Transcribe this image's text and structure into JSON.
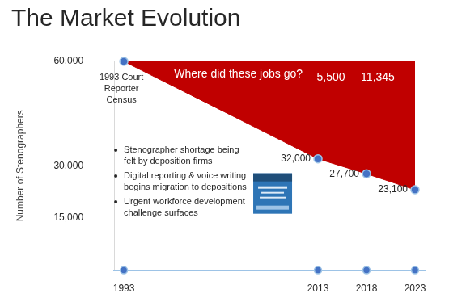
{
  "chart_data": {
    "type": "line",
    "title": "The Market Evolution",
    "y_label": "Number of Stenographers",
    "x": [
      1993,
      2013,
      2018,
      2023
    ],
    "values": [
      60000,
      32000,
      27700,
      23100
    ],
    "value_labels": [
      null,
      "32,000",
      "27,700",
      "23,100"
    ],
    "data_labels": true,
    "color": "#c00000",
    "marker": "circle",
    "xlim": [
      1992,
      2024
    ],
    "xticks": [
      1993,
      2013,
      2018,
      2023
    ],
    "ylim": [
      0,
      60000
    ],
    "yticks": [
      {
        "value": 15000,
        "label": "15,000"
      },
      {
        "value": 30000,
        "label": "30,000"
      },
      {
        "value": 60000,
        "label": "60,000"
      }
    ],
    "grid": false,
    "question": "Where did these jobs go?",
    "point_note": "1993 Court Reporter Census",
    "gap_labels": [
      {
        "value": 5500,
        "label": "5,500"
      },
      {
        "value": 11345,
        "label": "11,345"
      }
    ],
    "bullets": [
      "Stenographer shortage being felt by deposition firms",
      "Digital reporting & voice writing begins migration to depositions",
      "Urgent workforce development challenge surfaces"
    ]
  }
}
